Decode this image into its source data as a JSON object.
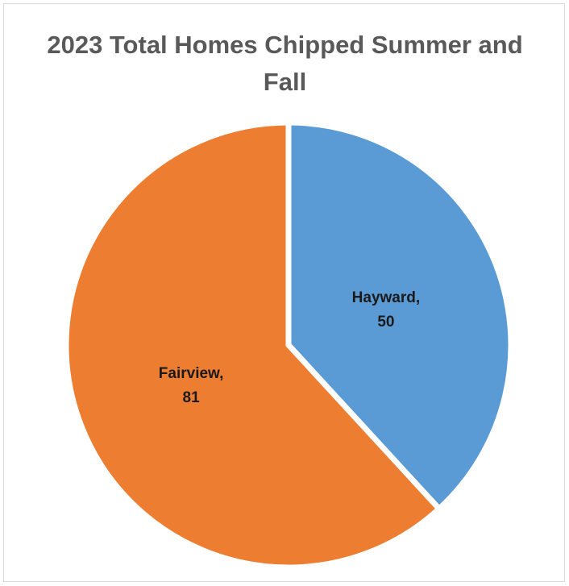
{
  "chart_data": {
    "type": "pie",
    "title": "2023 Total Homes Chipped Summer and Fall",
    "categories": [
      "Hayward",
      "Fairview"
    ],
    "values": [
      50,
      81
    ],
    "data_labels": [
      [
        "Hayward,",
        "50"
      ],
      [
        "Fairview,",
        "81"
      ]
    ],
    "colors": [
      "#5b9bd5",
      "#ed7d31"
    ],
    "legend": "none"
  }
}
